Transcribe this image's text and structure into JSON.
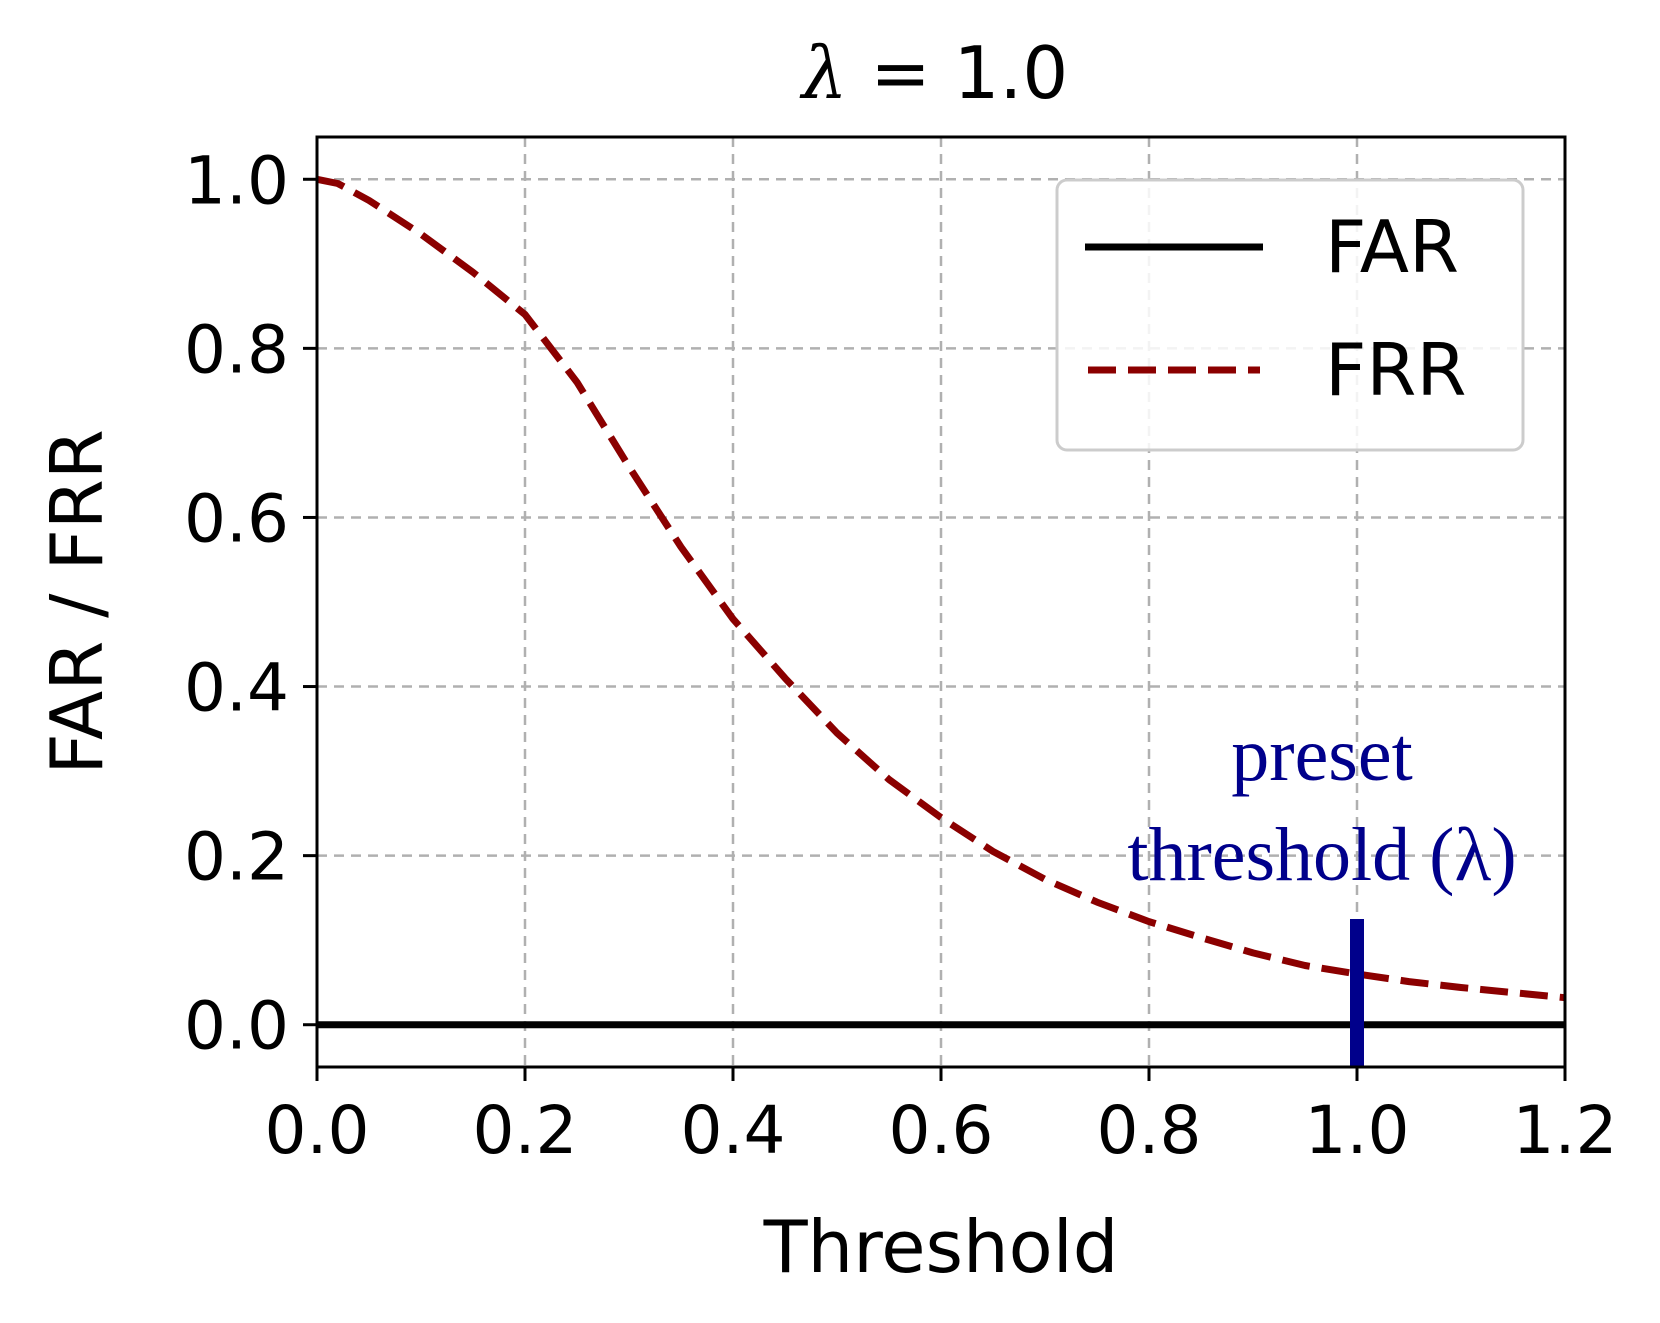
{
  "chart_data": {
    "type": "line",
    "title": "λ = 1.0",
    "title_symbol": "λ",
    "title_rest": " = 1.0",
    "xlabel": "Threshold",
    "ylabel": "FAR / FRR",
    "xlim": [
      0.0,
      1.2
    ],
    "ylim": [
      -0.05,
      1.05
    ],
    "grid": true,
    "legend_position": "top-right",
    "x_ticks": [
      0.0,
      0.2,
      0.4,
      0.6,
      0.8,
      1.0,
      1.2
    ],
    "x_tick_labels": [
      "0.0",
      "0.2",
      "0.4",
      "0.6",
      "0.8",
      "1.0",
      "1.2"
    ],
    "y_ticks": [
      0.0,
      0.2,
      0.4,
      0.6,
      0.8,
      1.0
    ],
    "y_tick_labels": [
      "0.0",
      "0.2",
      "0.4",
      "0.6",
      "0.8",
      "1.0"
    ],
    "series": [
      {
        "name": "FAR",
        "color": "#000000",
        "style": "solid",
        "x": [
          0.0,
          1.2
        ],
        "y": [
          0.0,
          0.0
        ]
      },
      {
        "name": "FRR",
        "color": "#8b0000",
        "style": "dashed",
        "x": [
          0.0,
          0.02,
          0.05,
          0.1,
          0.15,
          0.2,
          0.25,
          0.3,
          0.35,
          0.4,
          0.45,
          0.5,
          0.55,
          0.6,
          0.65,
          0.7,
          0.75,
          0.8,
          0.85,
          0.9,
          0.95,
          1.0,
          1.05,
          1.1,
          1.15,
          1.2
        ],
        "y": [
          1.0,
          0.995,
          0.975,
          0.935,
          0.89,
          0.84,
          0.76,
          0.66,
          0.565,
          0.48,
          0.41,
          0.345,
          0.29,
          0.245,
          0.205,
          0.172,
          0.145,
          0.122,
          0.103,
          0.085,
          0.07,
          0.06,
          0.051,
          0.044,
          0.038,
          0.032
        ]
      }
    ],
    "annotations": [
      {
        "line1": "preset",
        "line2": "threshold (λ)",
        "color": "#00008b",
        "marker_x": 1.0,
        "marker_y_range": [
          -0.05,
          0.125
        ]
      }
    ]
  }
}
